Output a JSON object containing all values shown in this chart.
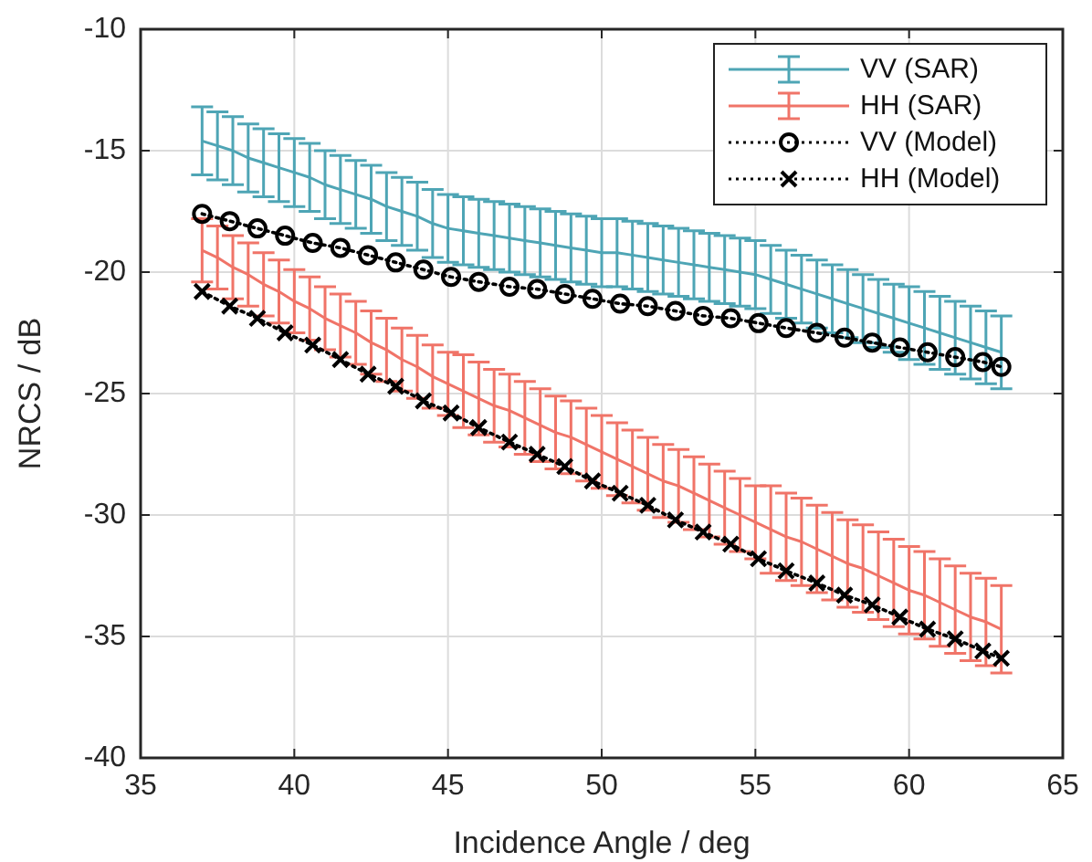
{
  "chart_data": {
    "type": "line",
    "xlabel": "Incidence Angle / deg",
    "ylabel": "NRCS / dB",
    "xlim": [
      35,
      65
    ],
    "ylim": [
      -40,
      -10
    ],
    "xticks": [
      35,
      40,
      45,
      50,
      55,
      60,
      65
    ],
    "yticks": [
      -40,
      -35,
      -30,
      -25,
      -20,
      -15,
      -10
    ],
    "grid": true,
    "legend": "top right",
    "series": [
      {
        "name": "VV (SAR)",
        "color": "#4ea5b5",
        "marker": "none",
        "line_style": "solid",
        "x": [
          37,
          37.5,
          38,
          38.5,
          39,
          39.5,
          40,
          40.5,
          41,
          41.5,
          42,
          42.5,
          43,
          43.5,
          44,
          44.5,
          45,
          45.5,
          46,
          46.5,
          47,
          47.5,
          48,
          48.5,
          49,
          49.5,
          50,
          50.5,
          51,
          51.5,
          52,
          52.5,
          53,
          53.5,
          54,
          54.5,
          55,
          55.5,
          56,
          56.5,
          57,
          57.5,
          58,
          58.5,
          59,
          59.5,
          60,
          60.5,
          61,
          61.5,
          62,
          62.5,
          63
        ],
        "values": [
          -14.6,
          -14.8,
          -15.0,
          -15.3,
          -15.5,
          -15.7,
          -15.9,
          -16.1,
          -16.4,
          -16.6,
          -16.8,
          -17.0,
          -17.3,
          -17.5,
          -17.7,
          -18.0,
          -18.2,
          -18.3,
          -18.4,
          -18.5,
          -18.6,
          -18.7,
          -18.8,
          -18.9,
          -19.0,
          -19.1,
          -19.2,
          -19.2,
          -19.3,
          -19.4,
          -19.5,
          -19.6,
          -19.7,
          -19.8,
          -19.9,
          -20.0,
          -20.1,
          -20.3,
          -20.5,
          -20.7,
          -20.9,
          -21.1,
          -21.3,
          -21.5,
          -21.7,
          -21.9,
          -22.1,
          -22.3,
          -22.5,
          -22.7,
          -22.9,
          -23.1,
          -23.3
        ],
        "errors": [
          1.4,
          1.4,
          1.4,
          1.4,
          1.4,
          1.4,
          1.4,
          1.4,
          1.4,
          1.4,
          1.4,
          1.4,
          1.4,
          1.4,
          1.4,
          1.4,
          1.4,
          1.4,
          1.4,
          1.4,
          1.4,
          1.4,
          1.4,
          1.4,
          1.4,
          1.4,
          1.4,
          1.4,
          1.4,
          1.4,
          1.4,
          1.4,
          1.4,
          1.4,
          1.4,
          1.4,
          1.4,
          1.4,
          1.4,
          1.4,
          1.4,
          1.4,
          1.4,
          1.4,
          1.4,
          1.4,
          1.5,
          1.5,
          1.5,
          1.5,
          1.5,
          1.5,
          1.5
        ]
      },
      {
        "name": "HH (SAR)",
        "color": "#f07468",
        "marker": "none",
        "line_style": "solid",
        "x": [
          37,
          37.5,
          38,
          38.5,
          39,
          39.5,
          40,
          40.5,
          41,
          41.5,
          42,
          42.5,
          43,
          43.5,
          44,
          44.5,
          45,
          45.5,
          46,
          46.5,
          47,
          47.5,
          48,
          48.5,
          49,
          49.5,
          50,
          50.5,
          51,
          51.5,
          52,
          52.5,
          53,
          53.5,
          54,
          54.5,
          55,
          55.5,
          56,
          56.5,
          57,
          57.5,
          58,
          58.5,
          59,
          59.5,
          60,
          60.5,
          61,
          61.5,
          62,
          62.5,
          63
        ],
        "values": [
          -19.1,
          -19.4,
          -19.8,
          -20.1,
          -20.5,
          -20.8,
          -21.2,
          -21.5,
          -21.9,
          -22.2,
          -22.5,
          -22.9,
          -23.2,
          -23.6,
          -23.9,
          -24.3,
          -24.6,
          -24.9,
          -25.2,
          -25.5,
          -25.7,
          -26.0,
          -26.3,
          -26.6,
          -26.8,
          -27.1,
          -27.4,
          -27.7,
          -28.0,
          -28.3,
          -28.6,
          -28.8,
          -29.1,
          -29.4,
          -29.7,
          -30.0,
          -30.3,
          -30.6,
          -30.9,
          -31.1,
          -31.4,
          -31.7,
          -32.0,
          -32.2,
          -32.5,
          -32.8,
          -33.1,
          -33.3,
          -33.6,
          -33.9,
          -34.2,
          -34.4,
          -34.7
        ],
        "errors": [
          1.3,
          1.3,
          1.3,
          1.3,
          1.3,
          1.3,
          1.3,
          1.3,
          1.3,
          1.3,
          1.3,
          1.3,
          1.3,
          1.3,
          1.3,
          1.3,
          1.3,
          1.5,
          1.5,
          1.5,
          1.5,
          1.5,
          1.5,
          1.5,
          1.5,
          1.5,
          1.5,
          1.5,
          1.5,
          1.5,
          1.5,
          1.5,
          1.5,
          1.5,
          1.5,
          1.5,
          1.5,
          1.8,
          1.8,
          1.8,
          1.8,
          1.8,
          1.8,
          1.8,
          1.8,
          1.8,
          1.8,
          1.8,
          1.8,
          1.8,
          1.8,
          1.8,
          1.8
        ]
      },
      {
        "name": "VV (Model)",
        "color": "#000000",
        "marker": "circle",
        "line_style": "dotted",
        "x": [
          37,
          37.9,
          38.8,
          39.7,
          40.6,
          41.5,
          42.4,
          43.3,
          44.2,
          45.1,
          46,
          47,
          47.9,
          48.8,
          49.7,
          50.6,
          51.5,
          52.4,
          53.3,
          54.2,
          55.1,
          56,
          57,
          57.9,
          58.8,
          59.7,
          60.6,
          61.5,
          62.4,
          63
        ],
        "values": [
          -17.6,
          -17.9,
          -18.2,
          -18.5,
          -18.8,
          -19.0,
          -19.3,
          -19.6,
          -19.9,
          -20.2,
          -20.4,
          -20.6,
          -20.7,
          -20.9,
          -21.1,
          -21.3,
          -21.4,
          -21.6,
          -21.8,
          -21.9,
          -22.1,
          -22.3,
          -22.5,
          -22.7,
          -22.9,
          -23.1,
          -23.3,
          -23.5,
          -23.7,
          -23.9
        ]
      },
      {
        "name": "HH (Model)",
        "color": "#000000",
        "marker": "cross",
        "line_style": "dotted",
        "x": [
          37,
          37.9,
          38.8,
          39.7,
          40.6,
          41.5,
          42.4,
          43.3,
          44.2,
          45.1,
          46,
          47,
          47.9,
          48.8,
          49.7,
          50.6,
          51.5,
          52.4,
          53.3,
          54.2,
          55.1,
          56,
          57,
          57.9,
          58.8,
          59.7,
          60.6,
          61.5,
          62.4,
          63
        ],
        "values": [
          -20.8,
          -21.4,
          -21.9,
          -22.5,
          -23.0,
          -23.6,
          -24.2,
          -24.7,
          -25.3,
          -25.8,
          -26.4,
          -27.0,
          -27.5,
          -28.0,
          -28.6,
          -29.1,
          -29.6,
          -30.2,
          -30.7,
          -31.2,
          -31.8,
          -32.3,
          -32.8,
          -33.3,
          -33.7,
          -34.2,
          -34.7,
          -35.1,
          -35.6,
          -35.9
        ]
      }
    ]
  }
}
